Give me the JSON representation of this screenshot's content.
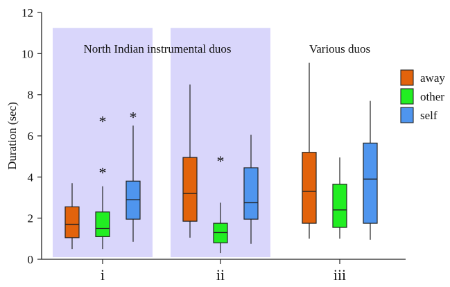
{
  "chart_data": {
    "type": "box",
    "ylabel": "Duration (sec)",
    "ylim": [
      0,
      12
    ],
    "y_ticks": [
      0,
      2,
      4,
      6,
      8,
      10,
      12
    ],
    "groups": [
      "i",
      "ii",
      "iii"
    ],
    "group_annotations": [
      {
        "group": "i",
        "text": "North Indian instrumental duos",
        "shaded": true
      },
      {
        "group": "ii",
        "text": "",
        "shaded": true
      },
      {
        "group": "iii",
        "text": "Various duos",
        "shaded": false
      }
    ],
    "series": [
      {
        "name": "away",
        "color": "#e2630c"
      },
      {
        "name": "other",
        "color": "#22ee22"
      },
      {
        "name": "self",
        "color": "#4f95ee"
      }
    ],
    "boxes": [
      {
        "group": "i",
        "series": "away",
        "whisker_low": 0.5,
        "q1": 1.05,
        "median": 1.7,
        "q3": 2.55,
        "whisker_high": 3.7,
        "outliers": []
      },
      {
        "group": "i",
        "series": "other",
        "whisker_low": 0.5,
        "q1": 1.1,
        "median": 1.5,
        "q3": 2.3,
        "whisker_high": 3.55,
        "outliers": [
          4.3,
          6.8
        ]
      },
      {
        "group": "i",
        "series": "self",
        "whisker_low": 0.85,
        "q1": 1.95,
        "median": 2.9,
        "q3": 3.8,
        "whisker_high": 6.5,
        "outliers": [
          7.0
        ]
      },
      {
        "group": "ii",
        "series": "away",
        "whisker_low": 1.05,
        "q1": 1.85,
        "median": 3.2,
        "q3": 4.95,
        "whisker_high": 8.5,
        "outliers": []
      },
      {
        "group": "ii",
        "series": "other",
        "whisker_low": 0.3,
        "q1": 0.8,
        "median": 1.3,
        "q3": 1.75,
        "whisker_high": 2.75,
        "outliers": [
          4.85
        ]
      },
      {
        "group": "ii",
        "series": "self",
        "whisker_low": 0.75,
        "q1": 1.95,
        "median": 2.75,
        "q3": 4.45,
        "whisker_high": 6.05,
        "outliers": []
      },
      {
        "group": "iii",
        "series": "away",
        "whisker_low": 1.0,
        "q1": 1.75,
        "median": 3.3,
        "q3": 5.2,
        "whisker_high": 9.55,
        "outliers": []
      },
      {
        "group": "iii",
        "series": "other",
        "whisker_low": 1.0,
        "q1": 1.55,
        "median": 2.4,
        "q3": 3.65,
        "whisker_high": 4.95,
        "outliers": []
      },
      {
        "group": "iii",
        "series": "self",
        "whisker_low": 0.95,
        "q1": 1.75,
        "median": 3.9,
        "q3": 5.65,
        "whisker_high": 7.7,
        "outliers": []
      }
    ],
    "legend_position": "right",
    "grid": false,
    "colors": {
      "shade": "#d9d6fb",
      "axis": "#222222"
    }
  }
}
